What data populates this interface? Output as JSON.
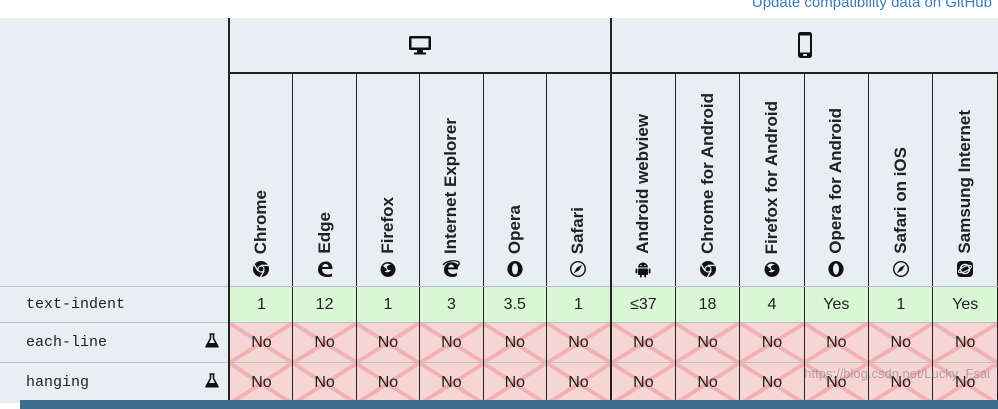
{
  "header": {
    "update_link": "Update compatibility data on GitHub"
  },
  "platforms": [
    {
      "name": "desktop",
      "icon": "desktop-icon"
    },
    {
      "name": "mobile",
      "icon": "mobile-icon"
    }
  ],
  "browsers": [
    {
      "label": "Chrome",
      "icon": "chrome-icon"
    },
    {
      "label": "Edge",
      "icon": "edge-icon"
    },
    {
      "label": "Firefox",
      "icon": "firefox-icon"
    },
    {
      "label": "Internet Explorer",
      "icon": "internet-explorer-icon"
    },
    {
      "label": "Opera",
      "icon": "opera-icon"
    },
    {
      "label": "Safari",
      "icon": "safari-icon"
    },
    {
      "label": "Android webview",
      "icon": "android-icon"
    },
    {
      "label": "Chrome for Android",
      "icon": "chrome-icon"
    },
    {
      "label": "Firefox for Android",
      "icon": "firefox-icon"
    },
    {
      "label": "Opera for Android",
      "icon": "opera-icon"
    },
    {
      "label": "Safari on iOS",
      "icon": "safari-icon"
    },
    {
      "label": "Samsung Internet",
      "icon": "samsung-internet-icon"
    }
  ],
  "features": [
    {
      "name": "text-indent",
      "experimental": false,
      "values": [
        "1",
        "12",
        "1",
        "3",
        "3.5",
        "1",
        "≤37",
        "18",
        "4",
        "Yes",
        "1",
        "Yes"
      ],
      "support": "yes"
    },
    {
      "name": "each-line",
      "experimental": true,
      "experimental_icon": "flask-icon",
      "values": [
        "No",
        "No",
        "No",
        "No",
        "No",
        "No",
        "No",
        "No",
        "No",
        "No",
        "No",
        "No"
      ],
      "support": "no"
    },
    {
      "name": "hanging",
      "experimental": true,
      "experimental_icon": "flask-icon",
      "values": [
        "No",
        "No",
        "No",
        "No",
        "No",
        "No",
        "No",
        "No",
        "No",
        "No",
        "No",
        "No"
      ],
      "support": "no"
    }
  ],
  "watermark": "https://blog.csdn.net/Lucky_Fsai",
  "colors": {
    "supported": "#d9f6d5",
    "unsupported": "#f6d5d5",
    "header_bg": "#e9eef2",
    "link": "#3b7bbf"
  }
}
